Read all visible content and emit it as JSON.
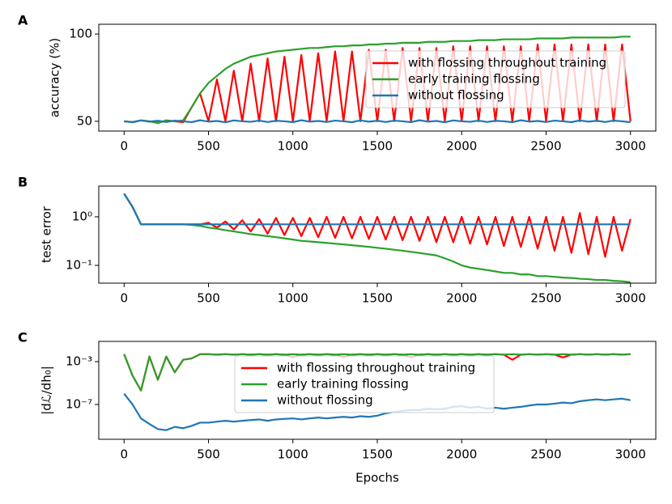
{
  "chart_data": [
    {
      "type": "line",
      "panel_label": "A",
      "ylabel": "accuracy (%)",
      "legend": "center right",
      "x": [
        0,
        50,
        100,
        150,
        200,
        250,
        300,
        350,
        400,
        450,
        500,
        550,
        600,
        650,
        700,
        750,
        800,
        850,
        900,
        950,
        1000,
        1050,
        1100,
        1150,
        1200,
        1250,
        1300,
        1350,
        1400,
        1450,
        1500,
        1550,
        1600,
        1650,
        1700,
        1750,
        1800,
        1850,
        1900,
        1950,
        2000,
        2050,
        2100,
        2150,
        2200,
        2250,
        2300,
        2350,
        2400,
        2450,
        2500,
        2550,
        2600,
        2650,
        2700,
        2750,
        2800,
        2850,
        2900,
        2950,
        3000
      ],
      "xlim": [
        -150,
        3150
      ],
      "xticks": [
        0,
        500,
        1000,
        1500,
        2000,
        2500,
        3000
      ],
      "ylim": [
        44.4,
        105.6
      ],
      "yticks": [
        50,
        100
      ],
      "series": [
        {
          "name": "with flossing throughout training",
          "color": "#ff0000",
          "values": [
            50,
            49.5,
            50.5,
            50,
            49,
            50.5,
            50,
            49.5,
            58,
            66,
            50,
            74,
            50,
            79,
            50,
            83,
            50,
            86,
            50,
            87,
            50,
            88,
            50,
            89,
            50,
            90,
            50,
            90,
            50,
            91,
            50,
            91,
            50,
            92,
            50,
            92,
            50,
            92,
            50,
            93,
            50,
            93,
            50,
            93,
            50,
            93,
            50,
            93,
            50,
            94,
            50,
            94,
            50,
            94,
            50,
            94,
            50,
            94,
            50,
            94,
            50
          ]
        },
        {
          "name": "early training flossing",
          "color": "#2ca02c",
          "values": [
            50,
            49.5,
            50.5,
            50,
            49,
            50.5,
            50,
            50.5,
            58,
            66,
            72,
            76,
            80,
            83,
            85,
            87,
            88,
            89,
            90,
            90.5,
            91,
            91.5,
            92,
            92,
            92.5,
            93,
            93,
            93.5,
            93.5,
            94,
            94,
            94.5,
            94.5,
            95,
            95,
            95,
            95.5,
            95.5,
            95.5,
            96,
            96,
            96,
            96.5,
            96.5,
            96.5,
            97,
            97,
            97,
            97,
            97.5,
            97.5,
            97.5,
            97.5,
            98,
            98,
            98,
            98,
            98,
            98,
            98.5,
            98.5
          ]
        },
        {
          "name": "without flossing",
          "color": "#1f77b4",
          "values": [
            50,
            49.5,
            50.5,
            49.8,
            50.3,
            49.6,
            50.4,
            50,
            49.5,
            50.6,
            49.8,
            50.2,
            49.4,
            50.5,
            50,
            49.7,
            50.4,
            49.6,
            50.3,
            50,
            49.5,
            50.6,
            49.8,
            50.2,
            49.6,
            50.4,
            50,
            49.5,
            50.5,
            49.8,
            50.3,
            49.6,
            50.4,
            50,
            49.5,
            50.6,
            49.8,
            50.2,
            49.4,
            50.5,
            50,
            49.7,
            50.4,
            49.6,
            50.3,
            50,
            49.5,
            50.6,
            49.8,
            50.2,
            49.6,
            50.4,
            50,
            49.5,
            50.5,
            49.8,
            50.3,
            49.6,
            50.4,
            50,
            49.5
          ]
        }
      ]
    },
    {
      "type": "line",
      "panel_label": "B",
      "ylabel": "test error",
      "log_y": true,
      "x": [
        0,
        50,
        100,
        150,
        200,
        250,
        300,
        350,
        400,
        450,
        500,
        550,
        600,
        650,
        700,
        750,
        800,
        850,
        900,
        950,
        1000,
        1050,
        1100,
        1150,
        1200,
        1250,
        1300,
        1350,
        1400,
        1450,
        1500,
        1550,
        1600,
        1650,
        1700,
        1750,
        1800,
        1850,
        1900,
        1950,
        2000,
        2050,
        2100,
        2150,
        2200,
        2250,
        2300,
        2350,
        2400,
        2450,
        2500,
        2550,
        2600,
        2650,
        2700,
        2750,
        2800,
        2850,
        2900,
        2950,
        3000
      ],
      "xlim": [
        -150,
        3150
      ],
      "xticks": [
        0,
        500,
        1000,
        1500,
        2000,
        2500,
        3000
      ],
      "ylim": [
        0.043,
        4.3
      ],
      "yticks": [
        {
          "value": 0.1,
          "label": "10⁻¹"
        },
        {
          "value": 1,
          "label": "10⁰"
        }
      ],
      "series": [
        {
          "name": "with flossing throughout training",
          "color": "#ff0000",
          "values": [
            3.0,
            1.6,
            0.7,
            0.7,
            0.7,
            0.7,
            0.7,
            0.7,
            0.7,
            0.7,
            0.75,
            0.6,
            0.8,
            0.55,
            0.85,
            0.5,
            0.9,
            0.45,
            0.95,
            0.42,
            0.95,
            0.4,
            0.95,
            0.38,
            1.0,
            0.37,
            1.0,
            0.36,
            1.0,
            0.35,
            1.0,
            0.34,
            1.0,
            0.33,
            1.0,
            0.32,
            1.0,
            0.3,
            1.0,
            0.3,
            1.0,
            0.28,
            1.0,
            0.27,
            1.0,
            0.25,
            1.0,
            0.24,
            1.0,
            0.22,
            1.0,
            0.2,
            1.0,
            0.18,
            1.2,
            0.17,
            1.0,
            0.15,
            1.0,
            0.2,
            0.9
          ]
        },
        {
          "name": "early training flossing",
          "color": "#2ca02c",
          "values": [
            3.0,
            1.6,
            0.7,
            0.7,
            0.7,
            0.7,
            0.7,
            0.7,
            0.68,
            0.65,
            0.6,
            0.57,
            0.53,
            0.5,
            0.47,
            0.44,
            0.42,
            0.4,
            0.38,
            0.36,
            0.34,
            0.32,
            0.31,
            0.3,
            0.29,
            0.28,
            0.27,
            0.26,
            0.25,
            0.24,
            0.23,
            0.22,
            0.21,
            0.2,
            0.19,
            0.18,
            0.17,
            0.16,
            0.14,
            0.12,
            0.1,
            0.09,
            0.085,
            0.08,
            0.075,
            0.07,
            0.07,
            0.065,
            0.065,
            0.06,
            0.06,
            0.058,
            0.056,
            0.055,
            0.053,
            0.052,
            0.05,
            0.05,
            0.048,
            0.047,
            0.045
          ]
        },
        {
          "name": "without flossing",
          "color": "#1f77b4",
          "values": [
            3.0,
            1.6,
            0.7,
            0.7,
            0.7,
            0.7,
            0.7,
            0.7,
            0.7,
            0.7,
            0.7,
            0.7,
            0.7,
            0.7,
            0.7,
            0.7,
            0.7,
            0.7,
            0.7,
            0.7,
            0.7,
            0.7,
            0.7,
            0.7,
            0.7,
            0.7,
            0.7,
            0.7,
            0.7,
            0.7,
            0.7,
            0.7,
            0.7,
            0.7,
            0.7,
            0.7,
            0.7,
            0.7,
            0.7,
            0.7,
            0.7,
            0.7,
            0.7,
            0.7,
            0.7,
            0.7,
            0.7,
            0.7,
            0.7,
            0.7,
            0.7,
            0.7,
            0.7,
            0.7,
            0.7,
            0.7,
            0.7,
            0.7,
            0.7,
            0.7,
            0.7
          ]
        }
      ]
    },
    {
      "type": "line",
      "panel_label": "C",
      "ylabel": "|dℒ/dh₀|",
      "xlabel": "Epochs",
      "log_y": true,
      "legend": "upper center",
      "x": [
        0,
        50,
        100,
        150,
        200,
        250,
        300,
        350,
        400,
        450,
        500,
        550,
        600,
        650,
        700,
        750,
        800,
        850,
        900,
        950,
        1000,
        1050,
        1100,
        1150,
        1200,
        1250,
        1300,
        1350,
        1400,
        1450,
        1500,
        1550,
        1600,
        1650,
        1700,
        1750,
        1800,
        1850,
        1900,
        1950,
        2000,
        2050,
        2100,
        2150,
        2200,
        2250,
        2300,
        2350,
        2400,
        2450,
        2500,
        2550,
        2600,
        2650,
        2700,
        2750,
        2800,
        2850,
        2900,
        2950,
        3000
      ],
      "xlim": [
        -150,
        3150
      ],
      "xticks": [
        0,
        500,
        1000,
        1500,
        2000,
        2500,
        3000
      ],
      "ylim": [
        5.6e-11,
        0.078
      ],
      "yticks": [
        {
          "value": 1e-07,
          "label": "10⁻⁷"
        },
        {
          "value": 0.001,
          "label": "10⁻³"
        }
      ],
      "series": [
        {
          "name": "with flossing throughout training",
          "color": "#ff0000",
          "values": [
            0.005,
            5e-05,
            2e-06,
            0.003,
            2e-05,
            0.003,
            0.0001,
            0.0015,
            0.002,
            0.005,
            0.005,
            0.0045,
            0.005,
            0.0045,
            0.005,
            0.0045,
            0.005,
            0.0045,
            0.005,
            0.0045,
            0.0025,
            0.0045,
            0.005,
            0.0045,
            0.005,
            0.0045,
            0.0025,
            0.0045,
            0.005,
            0.0045,
            0.005,
            0.0045,
            0.005,
            0.0045,
            0.0025,
            0.0045,
            0.005,
            0.0045,
            0.005,
            0.0045,
            0.005,
            0.0045,
            0.005,
            0.0045,
            0.005,
            0.0045,
            0.0015,
            0.0045,
            0.005,
            0.0045,
            0.005,
            0.0045,
            0.0025,
            0.0045,
            0.005,
            0.0045,
            0.005,
            0.0045,
            0.005,
            0.0045,
            0.005
          ]
        },
        {
          "name": "early training flossing",
          "color": "#2ca02c",
          "values": [
            0.005,
            5e-05,
            2e-06,
            0.003,
            2e-05,
            0.003,
            0.0001,
            0.0015,
            0.002,
            0.005,
            0.005,
            0.0045,
            0.005,
            0.0045,
            0.005,
            0.0045,
            0.005,
            0.0045,
            0.005,
            0.0045,
            0.005,
            0.0045,
            0.005,
            0.0045,
            0.005,
            0.0045,
            0.005,
            0.0045,
            0.005,
            0.0045,
            0.005,
            0.0045,
            0.005,
            0.0045,
            0.005,
            0.0045,
            0.005,
            0.0045,
            0.005,
            0.0045,
            0.005,
            0.0045,
            0.005,
            0.0045,
            0.005,
            0.0045,
            0.005,
            0.0045,
            0.005,
            0.0045,
            0.005,
            0.0045,
            0.005,
            0.0045,
            0.005,
            0.0045,
            0.005,
            0.0045,
            0.005,
            0.0045,
            0.005
          ]
        },
        {
          "name": "without flossing",
          "color": "#1f77b4",
          "values": [
            1e-06,
            1e-07,
            5e-09,
            1.5e-09,
            5e-10,
            4e-10,
            8e-10,
            6e-10,
            1e-09,
            2e-09,
            2e-09,
            2.5e-09,
            3e-09,
            2.5e-09,
            3e-09,
            3.5e-09,
            4e-09,
            3e-09,
            4e-09,
            4.5e-09,
            5e-09,
            4e-09,
            5e-09,
            6e-09,
            5e-09,
            6e-09,
            7e-09,
            6e-09,
            8e-09,
            7e-09,
            9e-09,
            1.5e-08,
            2e-08,
            2.5e-08,
            3e-08,
            3e-08,
            4e-08,
            3.5e-08,
            4e-08,
            6e-08,
            7e-08,
            5e-08,
            6e-08,
            4e-08,
            5e-08,
            4e-08,
            5e-08,
            6e-08,
            8e-08,
            1e-07,
            1e-07,
            1.2e-07,
            1.5e-07,
            1.3e-07,
            2e-07,
            2.5e-07,
            3e-07,
            2.5e-07,
            3e-07,
            3.5e-07,
            2.5e-07
          ]
        }
      ]
    }
  ]
}
